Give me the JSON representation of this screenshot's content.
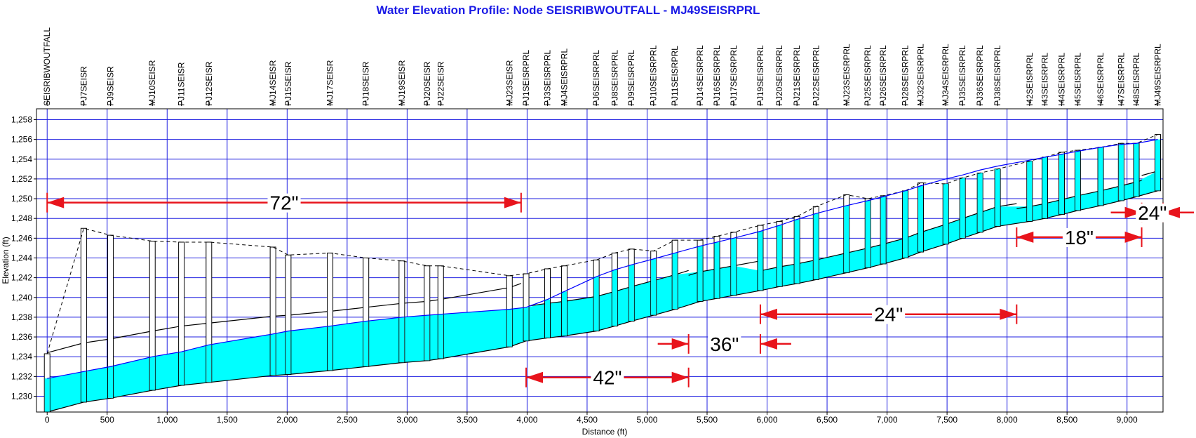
{
  "chart_data": {
    "type": "profile",
    "title": "Water Elevation Profile:  Node SEISRIBWOUTFALL - MJ49SEISRPRL",
    "x_label": "Distance (ft)",
    "y_label": "Elevation (ft)",
    "xlim": [
      -89,
      9300
    ],
    "ylim": [
      1228.4,
      1259.1
    ],
    "xticks": [
      0,
      500,
      {
        "value": 1000,
        "label": "1,000"
      },
      {
        "value": 1500,
        "label": "1,500"
      },
      {
        "value": 2000,
        "label": "2,000"
      },
      {
        "value": 2500,
        "label": "2,500"
      },
      {
        "value": 3000,
        "label": "3,000"
      },
      {
        "value": 3500,
        "label": "3,500"
      },
      {
        "value": 4000,
        "label": "4,000"
      },
      {
        "value": 4500,
        "label": "4,500"
      },
      {
        "value": 5000,
        "label": "5,000"
      },
      {
        "value": 5500,
        "label": "5,500"
      },
      {
        "value": 6000,
        "label": "6,000"
      },
      {
        "value": 6500,
        "label": "6,500"
      },
      {
        "value": 7000,
        "label": "7,000"
      },
      {
        "value": 7500,
        "label": "7,500"
      },
      {
        "value": 8000,
        "label": "8,000"
      },
      {
        "value": 8500,
        "label": "8,500"
      },
      {
        "value": 9000,
        "label": "9,000"
      }
    ],
    "yticks": [
      {
        "value": 1230,
        "label": "1,230"
      },
      {
        "value": 1232,
        "label": "1,232"
      },
      {
        "value": 1234,
        "label": "1,234"
      },
      {
        "value": 1236,
        "label": "1,236"
      },
      {
        "value": 1238,
        "label": "1,238"
      },
      {
        "value": 1240,
        "label": "1,240"
      },
      {
        "value": 1242,
        "label": "1,242"
      },
      {
        "value": 1244,
        "label": "1,244"
      },
      {
        "value": 1246,
        "label": "1,246"
      },
      {
        "value": 1248,
        "label": "1,248"
      },
      {
        "value": 1250,
        "label": "1,250"
      },
      {
        "value": 1252,
        "label": "1,252"
      },
      {
        "value": 1254,
        "label": "1,254"
      },
      {
        "value": 1256,
        "label": "1,256"
      },
      {
        "value": 1258,
        "label": "1,258"
      }
    ],
    "grid": true,
    "grid_color": "#1f1fe0",
    "water_color": "#00ffff",
    "water_line_color": "#0000ff",
    "annotation_color": "#e8141c",
    "nodes": [
      {
        "name": "SEISRIBWOUTFALL",
        "distance": 0,
        "invert": 1228.4,
        "rim": 1234.3,
        "water": 1231.8
      },
      {
        "name": "PJ7SEISR",
        "distance": 305,
        "invert": 1229.4,
        "rim": 1247.0,
        "water": 1232.5
      },
      {
        "name": "PJ9SEISR",
        "distance": 528,
        "invert": 1229.8,
        "rim": 1246.3,
        "water": 1233.0
      },
      {
        "name": "MJ10SEISR",
        "distance": 877,
        "invert": 1230.6,
        "rim": 1245.7,
        "water": 1234.0
      },
      {
        "name": "PJ11SEISR",
        "distance": 1119,
        "invert": 1231.1,
        "rim": 1245.6,
        "water": 1234.5
      },
      {
        "name": "PJ12SEISR",
        "distance": 1348,
        "invert": 1231.4,
        "rim": 1245.6,
        "water": 1235.2
      },
      {
        "name": "MJ14SEISR",
        "distance": 1882,
        "invert": 1232.1,
        "rim": 1245.1,
        "water": 1236.3
      },
      {
        "name": "PJ15SEISR",
        "distance": 2009,
        "invert": 1232.2,
        "rim": 1244.3,
        "water": 1236.6
      },
      {
        "name": "MJ17SEISR",
        "distance": 2358,
        "invert": 1232.6,
        "rim": 1244.5,
        "water": 1237.1
      },
      {
        "name": "PJ18SEISR",
        "distance": 2657,
        "invert": 1233.0,
        "rim": 1244.0,
        "water": 1237.6
      },
      {
        "name": "MJ19SEISR",
        "distance": 2956,
        "invert": 1233.4,
        "rim": 1243.7,
        "water": 1238.0
      },
      {
        "name": "PJ20SEISR",
        "distance": 3166,
        "invert": 1233.6,
        "rim": 1243.2,
        "water": 1238.2
      },
      {
        "name": "PJ22SEISR",
        "distance": 3280,
        "invert": 1233.8,
        "rim": 1243.2,
        "water": 1238.3
      },
      {
        "name": "MJ23SEISR",
        "distance": 3853,
        "invert": 1235.0,
        "rim": 1242.2,
        "water": 1238.8
      },
      {
        "name": "PJ1SEISRPRL",
        "distance": 3992,
        "invert": 1235.6,
        "rim": 1242.4,
        "water": 1239.0
      },
      {
        "name": "PJ3SEISRPRL",
        "distance": 4170,
        "invert": 1235.9,
        "rim": 1242.9,
        "water": 1239.8
      },
      {
        "name": "MJ4SEISRPRL",
        "distance": 4310,
        "invert": 1236.1,
        "rim": 1243.2,
        "water": 1240.6
      },
      {
        "name": "PJ6SEISRPRL",
        "distance": 4577,
        "invert": 1236.6,
        "rim": 1243.8,
        "water": 1242.1
      },
      {
        "name": "PJ8SEISRPRL",
        "distance": 4730,
        "invert": 1237.1,
        "rim": 1244.5,
        "water": 1242.8
      },
      {
        "name": "PJ9SEISRPRL",
        "distance": 4870,
        "invert": 1237.6,
        "rim": 1244.9,
        "water": 1243.3
      },
      {
        "name": "PJ10SEISRPRL",
        "distance": 5054,
        "invert": 1238.2,
        "rim": 1244.7,
        "water": 1243.9
      },
      {
        "name": "PJ11SEISRPRL",
        "distance": 5232,
        "invert": 1238.8,
        "rim": 1245.8,
        "water": 1244.5
      },
      {
        "name": "PJ14SEISRPRL",
        "distance": 5442,
        "invert": 1239.6,
        "rim": 1245.8,
        "water": 1245.2
      },
      {
        "name": "PJ16SEISRPRL",
        "distance": 5582,
        "invert": 1239.9,
        "rim": 1246.2,
        "water": 1245.6
      },
      {
        "name": "PJ17SEISRPRL",
        "distance": 5721,
        "invert": 1240.2,
        "rim": 1246.6,
        "water": 1246.0
      },
      {
        "name": "PJ19SEISRPRL",
        "distance": 5944,
        "invert": 1240.7,
        "rim": 1247.3,
        "water": 1246.7
      },
      {
        "name": "PJ20SEISRPRL",
        "distance": 6103,
        "invert": 1241.1,
        "rim": 1247.7,
        "water": 1247.3
      },
      {
        "name": "PJ21SEISRPRL",
        "distance": 6249,
        "invert": 1241.4,
        "rim": 1248.2,
        "water": 1247.9
      },
      {
        "name": "PJ22SEISRPRL",
        "distance": 6408,
        "invert": 1241.8,
        "rim": 1249.2,
        "water": 1248.5
      },
      {
        "name": "MJ23SEISRPRL",
        "distance": 6662,
        "invert": 1242.5,
        "rim": 1250.4,
        "water": 1249.3
      },
      {
        "name": "PJ25SEISRPRL",
        "distance": 6840,
        "invert": 1243.0,
        "rim": 1250.0,
        "water": 1249.8
      },
      {
        "name": "PJ26SEISRPRL",
        "distance": 6968,
        "invert": 1243.4,
        "rim": 1250.3,
        "water": 1250.2
      },
      {
        "name": "PJ28SEISRPRL",
        "distance": 7152,
        "invert": 1244.0,
        "rim": 1250.8,
        "water": 1250.8
      },
      {
        "name": "MJ32SEISRPRL",
        "distance": 7280,
        "invert": 1244.6,
        "rim": 1251.6,
        "water": 1251.3
      },
      {
        "name": "MJ34SEISRPRL",
        "distance": 7489,
        "invert": 1245.4,
        "rim": 1251.5,
        "water": 1252.0
      },
      {
        "name": "PJ35SEISRPRL",
        "distance": 7629,
        "invert": 1246.0,
        "rim": 1252.1,
        "water": 1252.4
      },
      {
        "name": "PJ36SEISRPRL",
        "distance": 7775,
        "invert": 1246.6,
        "rim": 1252.6,
        "water": 1252.9
      },
      {
        "name": "PJ38SEISRPRL",
        "distance": 7921,
        "invert": 1247.2,
        "rim": 1253.0,
        "water": 1253.3
      },
      {
        "name": "I42SEISRPRL",
        "distance": 8188,
        "invert": 1247.7,
        "rim": 1253.8,
        "water": 1253.9
      },
      {
        "name": "I43SEISRPRL",
        "distance": 8315,
        "invert": 1248.0,
        "rim": 1254.2,
        "water": 1254.2
      },
      {
        "name": "I44SEISRPRL",
        "distance": 8455,
        "invert": 1248.4,
        "rim": 1254.7,
        "water": 1254.5
      },
      {
        "name": "I45SEISRPRL",
        "distance": 8589,
        "invert": 1248.8,
        "rim": 1254.9,
        "water": 1254.8
      },
      {
        "name": "I46SEISRPRL",
        "distance": 8780,
        "invert": 1249.3,
        "rim": 1255.2,
        "water": 1255.2
      },
      {
        "name": "I47SEISRPRL",
        "distance": 8951,
        "invert": 1249.8,
        "rim": 1255.6,
        "water": 1255.5
      },
      {
        "name": "I48SEISRPRL",
        "distance": 9078,
        "invert": 1250.2,
        "rim": 1255.6,
        "water": 1255.6
      },
      {
        "name": "MJ49SEISRPRL",
        "distance": 9256,
        "invert": 1250.8,
        "rim": 1256.5,
        "water": 1256.0
      }
    ],
    "pipes": [
      {
        "label": "72\"",
        "diameter": 72,
        "from": 0,
        "to": 3950,
        "label_elevation": 1249.6
      },
      {
        "label": "42\"",
        "diameter": 42,
        "from": 3992,
        "to": 5346,
        "label_elevation": 1231.9
      },
      {
        "label": "36\"",
        "diameter": 36,
        "from": 5346,
        "to": 5944,
        "label_elevation": 1235.3
      },
      {
        "label": "24\"",
        "diameter": 24,
        "from": 5944,
        "to": 8080,
        "label_elevation": 1238.3
      },
      {
        "label": "18\"",
        "diameter": 18,
        "from": 8080,
        "to": 9122,
        "label_elevation": 1246.1
      },
      {
        "label": "24\"",
        "diameter": 24,
        "from": 9122,
        "to": 9300,
        "label_elevation": 1248.6
      }
    ]
  }
}
